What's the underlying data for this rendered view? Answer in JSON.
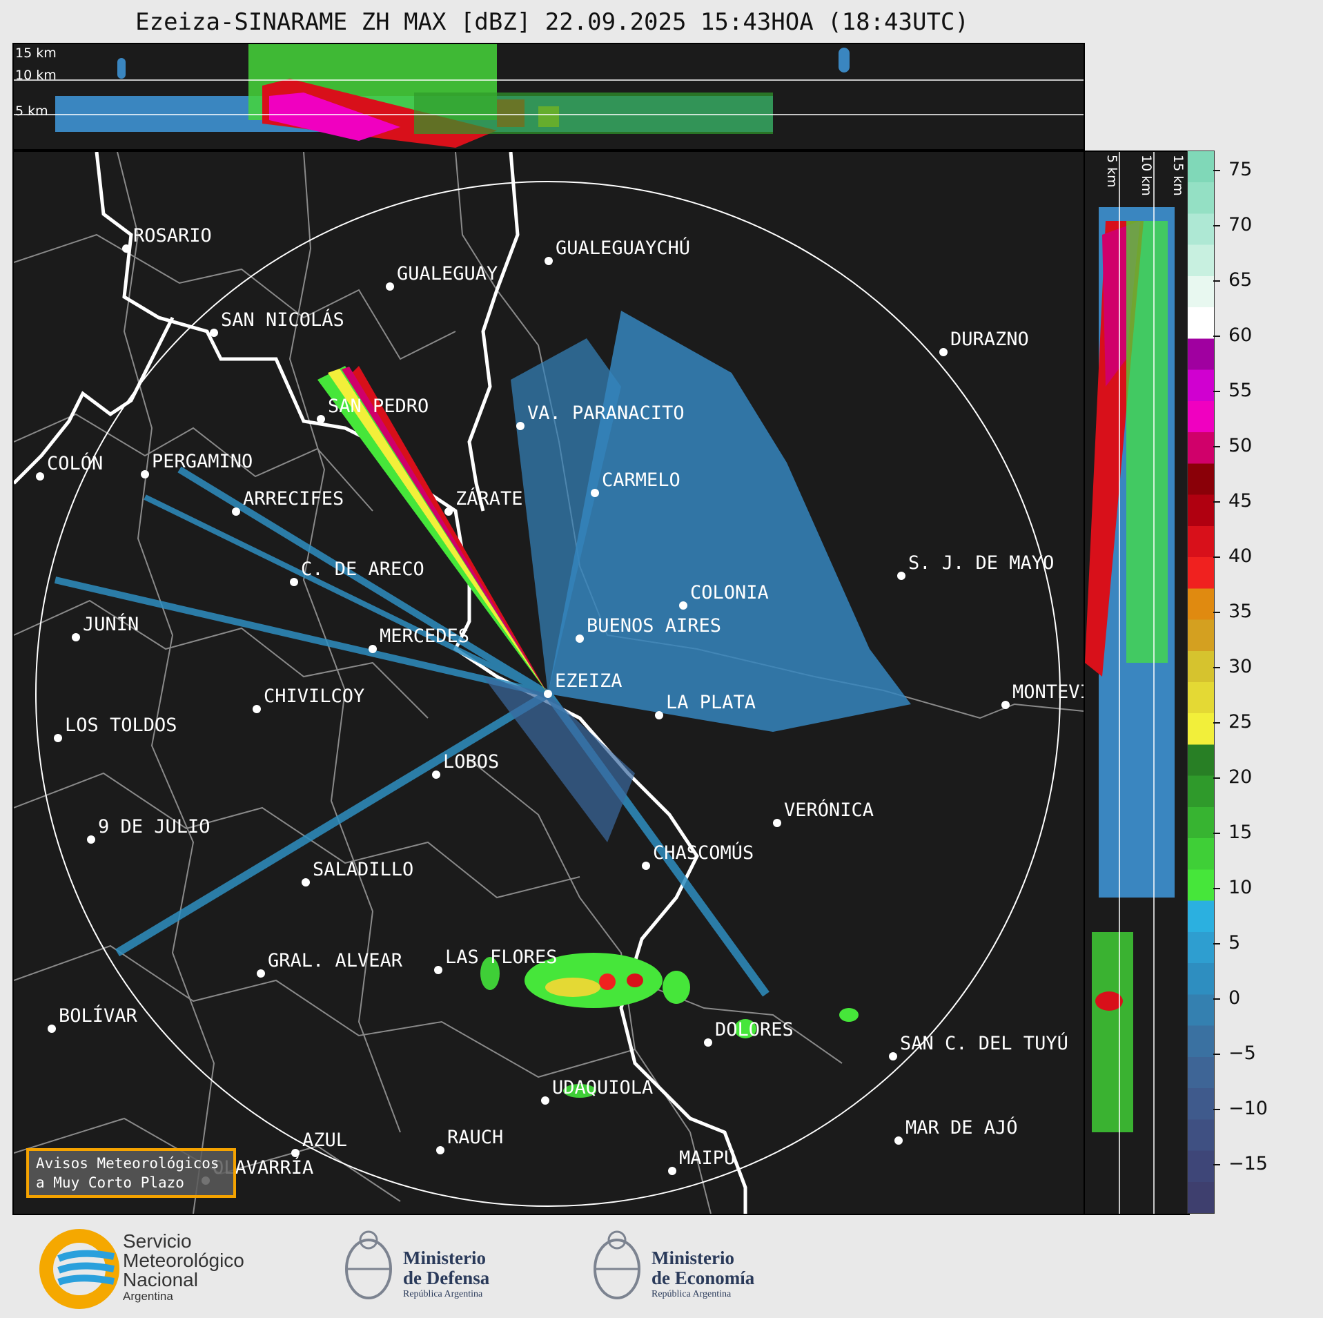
{
  "title": "Ezeiza-SINARAME ZH MAX [dBZ] 22.09.2025 15:43HOA (18:43UTC)",
  "height_labels": [
    "15 km",
    "10 km",
    "5 km"
  ],
  "side_labels": [
    "5 km",
    "10 km",
    "15 km"
  ],
  "colorbar": {
    "ticks": [
      "75",
      "70",
      "65",
      "60",
      "55",
      "50",
      "45",
      "40",
      "35",
      "30",
      "25",
      "20",
      "15",
      "10",
      "5",
      "0",
      "−5",
      "−10",
      "−15"
    ],
    "colors": [
      "#3e3f6e",
      "#3e4678",
      "#3f5082",
      "#3f5a8c",
      "#3e6596",
      "#3a71a1",
      "#3480b0",
      "#2e8ec0",
      "#2e9ed0",
      "#2bb0e0",
      "#46e63a",
      "#3fcf37",
      "#37b431",
      "#2f9a2b",
      "#287f25",
      "#f2ef3a",
      "#e4d934",
      "#d6c32e",
      "#d4a020",
      "#e08a10",
      "#f0211f",
      "#d8101a",
      "#b00010",
      "#8a0008",
      "#d0006a",
      "#f000c0",
      "#d000d0",
      "#a000a0",
      "#ffffff",
      "#e8f8f0",
      "#c8f0e0",
      "#aee8d4",
      "#94e0c4",
      "#80d8b8"
    ]
  },
  "cities": [
    {
      "name": "ROSARIO"
    },
    {
      "name": "GUALEGUAYCHÚ"
    },
    {
      "name": "GUALEGUAY"
    },
    {
      "name": "SAN NICOLÁS"
    },
    {
      "name": "DURAZNO"
    },
    {
      "name": "SAN PEDRO"
    },
    {
      "name": "VA. PARANACITO"
    },
    {
      "name": "COLÓN"
    },
    {
      "name": "PERGAMINO"
    },
    {
      "name": "CARMELO"
    },
    {
      "name": "ARRECIFES"
    },
    {
      "name": "ZÁRATE"
    },
    {
      "name": "S. J. DE MAYO"
    },
    {
      "name": "C. DE ARECO"
    },
    {
      "name": "COLONIA"
    },
    {
      "name": "JUNÍN"
    },
    {
      "name": "BUENOS AIRES"
    },
    {
      "name": "MERCEDES"
    },
    {
      "name": "EZEIZA"
    },
    {
      "name": "MONTEVIDEO"
    },
    {
      "name": "CHIVILCOY"
    },
    {
      "name": "LA PLATA"
    },
    {
      "name": "LOS TOLDOS"
    },
    {
      "name": "LOBOS"
    },
    {
      "name": "VERÓNICA"
    },
    {
      "name": "9 DE JULIO"
    },
    {
      "name": "CHASCOMÚS"
    },
    {
      "name": "SALADILLO"
    },
    {
      "name": "GRAL. ALVEAR"
    },
    {
      "name": "LAS FLORES"
    },
    {
      "name": "BOLÍVAR"
    },
    {
      "name": "DOLORES"
    },
    {
      "name": "SAN C. DEL TUYÚ"
    },
    {
      "name": "UDAQUIOLA"
    },
    {
      "name": "MAR DE AJÓ"
    },
    {
      "name": "AZUL"
    },
    {
      "name": "RAUCH"
    },
    {
      "name": "OLAVARRÍA"
    },
    {
      "name": "MAIPÚ"
    }
  ],
  "warning_box": {
    "line1": "Avisos Meteorológicos",
    "line2": "a Muy Corto Plazo"
  },
  "logos": {
    "smn": {
      "line1": "Servicio",
      "line2": "Meteorológico",
      "line3": "Nacional",
      "line4": "Argentina"
    },
    "defensa": {
      "line1": "Ministerio",
      "line2": "de Defensa",
      "line3": "República Argentina"
    },
    "economia": {
      "line1": "Ministerio",
      "line2": "de Economía",
      "line3": "República Argentina"
    }
  }
}
